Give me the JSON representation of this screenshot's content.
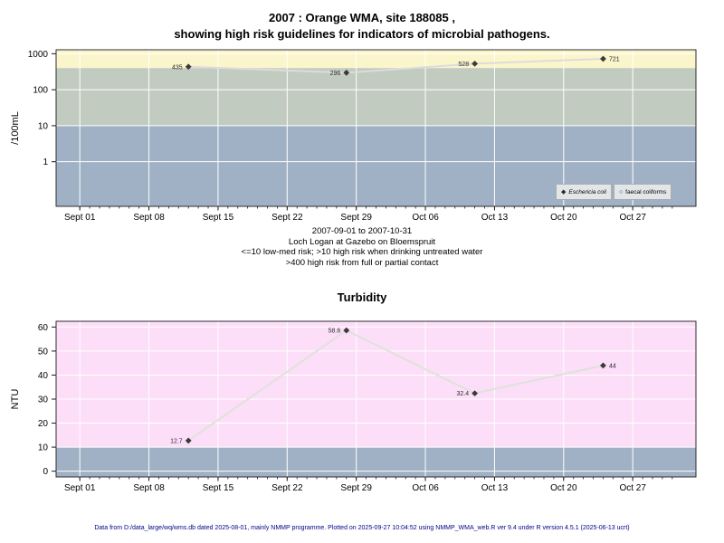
{
  "header": {
    "title_line1": "2007 : Orange WMA, site 188085 ,",
    "title_line2": "showing high risk guidelines for indicators of microbial pathogens."
  },
  "risk_notes": [
    "2007-09-01 to 2007-10-31",
    "Loch Logan at Gazebo on Bloemspruit",
    "<=10 low-med risk; >10 high risk when drinking untreated water",
    ">400 high risk from full or partial contact"
  ],
  "footer": {
    "text": "Data from D:/data_large/wq/wms.db dated 2025-08-01, mainly NMMP programme. Plotted on 2025-09-27 10:04:52 using NMMP_WMA_web.R ver 9.4 under R version 4.5.1 (2025-06-13 ucrt)"
  },
  "chart_data": [
    {
      "id": "microbial-indicators",
      "type": "line",
      "title": "",
      "ylabel": "/100mL",
      "y_scale": "log10",
      "y_ticks": [
        1000,
        100,
        10,
        1
      ],
      "ylim_log10": [
        -1.24,
        3.11
      ],
      "xlim_days": [
        -2.4,
        62.4
      ],
      "x_days_total": 60,
      "x_ticks": [
        {
          "day": 0,
          "label": "Sept 01"
        },
        {
          "day": 7,
          "label": "Sept 08"
        },
        {
          "day": 14,
          "label": "Sept 15"
        },
        {
          "day": 21,
          "label": "Sept 22"
        },
        {
          "day": 28,
          "label": "Sept 29"
        },
        {
          "day": 35,
          "label": "Oct 06"
        },
        {
          "day": 42,
          "label": "Oct 13"
        },
        {
          "day": 49,
          "label": "Oct 20"
        },
        {
          "day": 56,
          "label": "Oct 27"
        }
      ],
      "bands": [
        {
          "from": 400,
          "to": "top",
          "color": "#FBF5CB"
        },
        {
          "from": 10,
          "to": 400,
          "color": "#C2CBBF"
        },
        {
          "from": "bottom",
          "to": 10,
          "color": "#A0B1C5"
        }
      ],
      "grid": true,
      "grid_color": "#FFFFFF",
      "line_color": "#DCDCDC",
      "marker_color": "#3A3A3A",
      "series": [
        {
          "name": "Eschericia coli",
          "marker": "filled-diamond",
          "points": [
            {
              "day": 11,
              "value": 435,
              "label": "435",
              "label_side": "left"
            },
            {
              "day": 27,
              "value": 296,
              "label": "296",
              "label_side": "left"
            },
            {
              "day": 40,
              "value": 528,
              "label": "528",
              "label_side": "left"
            },
            {
              "day": 53,
              "value": 721,
              "label": "721",
              "label_side": "right"
            }
          ]
        }
      ],
      "legend": {
        "position": "bottom-right",
        "items": [
          {
            "symbol": "filled-diamond",
            "symbol_char": "◆",
            "label": "Eschericia coli"
          },
          {
            "symbol": "open-circle",
            "symbol_char": "○",
            "label": "faecal coliforms"
          }
        ]
      }
    },
    {
      "id": "turbidity",
      "type": "line",
      "title": "Turbidity",
      "ylabel": "NTU",
      "y_scale": "linear",
      "y_ticks": [
        60,
        50,
        40,
        30,
        20,
        10,
        0
      ],
      "ylim": [
        -2.4,
        62.4
      ],
      "xlim_days": [
        -2.4,
        62.4
      ],
      "x_days_total": 60,
      "x_ticks": [
        {
          "day": 0,
          "label": "Sept 01"
        },
        {
          "day": 7,
          "label": "Sept 08"
        },
        {
          "day": 14,
          "label": "Sept 15"
        },
        {
          "day": 21,
          "label": "Sept 22"
        },
        {
          "day": 28,
          "label": "Sept 29"
        },
        {
          "day": 35,
          "label": "Oct 06"
        },
        {
          "day": 42,
          "label": "Oct 13"
        },
        {
          "day": 49,
          "label": "Oct 20"
        },
        {
          "day": 56,
          "label": "Oct 27"
        }
      ],
      "bands": [
        {
          "from": 10,
          "to": "top",
          "color": "#FCDEF8"
        },
        {
          "from": "bottom",
          "to": 10,
          "color": "#A0B1C5"
        }
      ],
      "grid": true,
      "grid_color": "#FFFFFF",
      "line_color": "#DDE3D9",
      "marker_color": "#3A3A3A",
      "series": [
        {
          "name": "Turbidity",
          "marker": "filled-diamond",
          "points": [
            {
              "day": 11,
              "value": 12.7,
              "label": "12.7",
              "label_side": "left"
            },
            {
              "day": 27,
              "value": 58.6,
              "label": "58.6",
              "label_side": "left"
            },
            {
              "day": 40,
              "value": 32.4,
              "label": "32.4",
              "label_side": "left"
            },
            {
              "day": 53,
              "value": 44,
              "label": "44",
              "label_side": "right"
            }
          ]
        }
      ]
    }
  ]
}
